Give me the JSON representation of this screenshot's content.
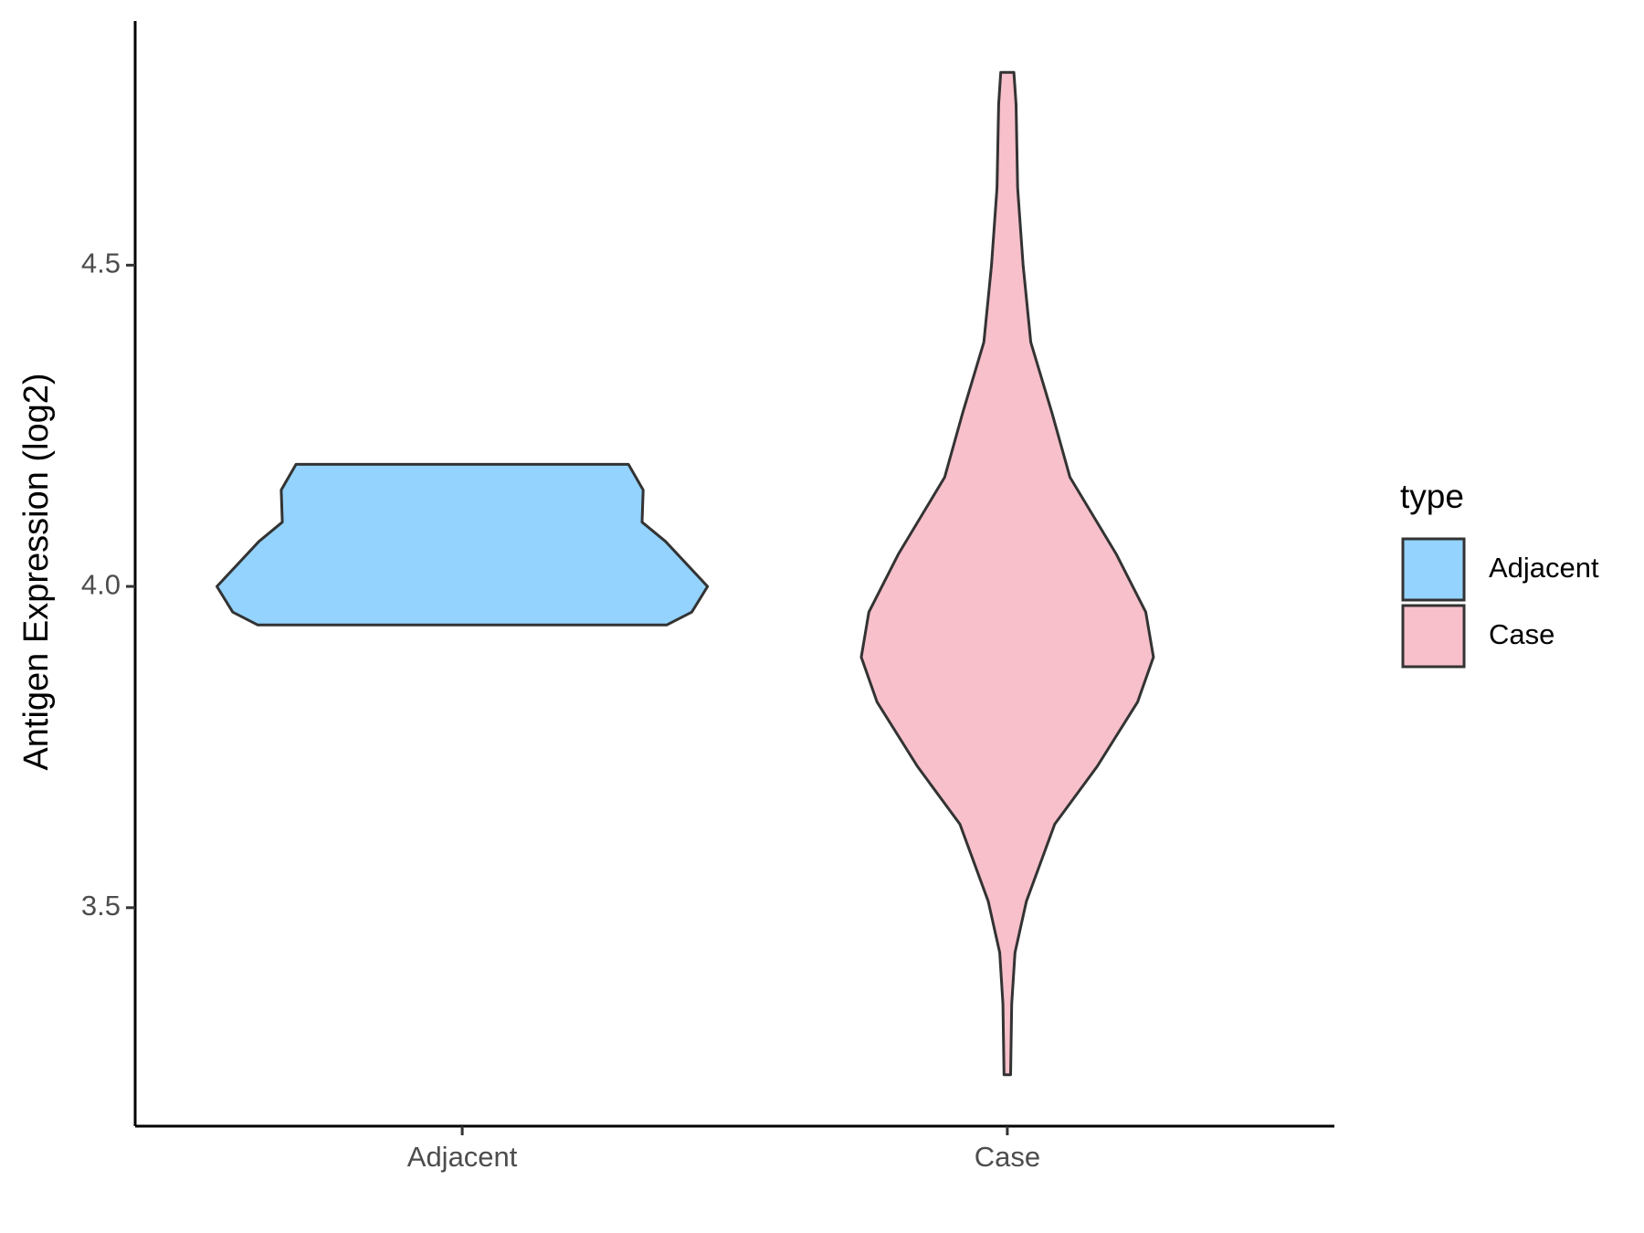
{
  "chart_data": {
    "type": "violin",
    "y_label": "Antigen Expression (log2)",
    "categories": [
      "Adjacent",
      "Case"
    ],
    "legend_title": "type",
    "series": [
      {
        "name": "Adjacent",
        "color": "#93d3fe",
        "y": [
          4.19,
          4.15,
          4.1,
          4.07,
          4.0,
          3.96,
          3.94
        ],
        "density": [
          0.305,
          0.332,
          0.33,
          0.373,
          0.45,
          0.421,
          0.375
        ]
      },
      {
        "name": "Case",
        "color": "#f7c0cb",
        "y": [
          4.8,
          4.75,
          4.62,
          4.5,
          4.38,
          4.27,
          4.17,
          4.05,
          3.96,
          3.89,
          3.82,
          3.72,
          3.63,
          3.51,
          3.43,
          3.35,
          3.24
        ],
        "density": [
          0.012,
          0.016,
          0.019,
          0.029,
          0.043,
          0.082,
          0.115,
          0.2,
          0.254,
          0.268,
          0.239,
          0.165,
          0.087,
          0.035,
          0.014,
          0.008,
          0.006
        ]
      }
    ],
    "ylim": [
      3.16,
      4.88
    ],
    "yticks": [
      3.5,
      {
        "value": 4,
        "label": "4.0"
      },
      4.5
    ],
    "grid": false,
    "legend_position": "right"
  }
}
